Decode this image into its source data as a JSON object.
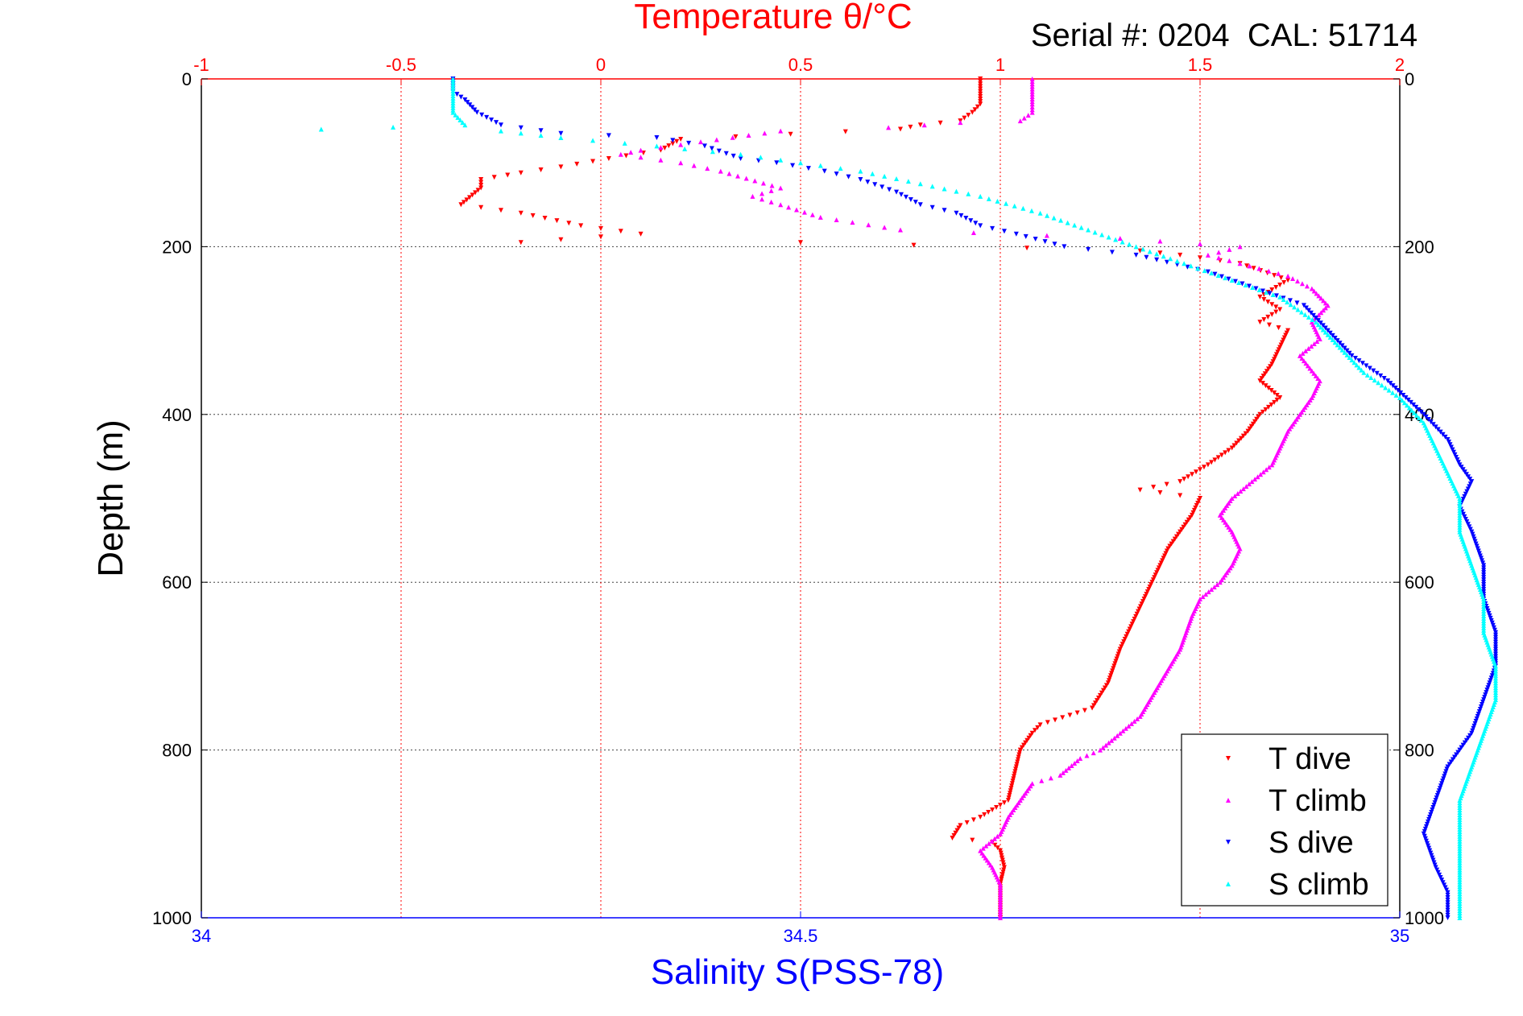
{
  "chart_data": {
    "type": "scatter",
    "title": "Temperature θ/°C",
    "subtitle": "Serial #: 0204  CAL: 51714",
    "ylabel": "Depth (m)",
    "xlabel": "Salinity S(PSS-78)",
    "x2label": "Temperature θ/°C",
    "ylim": [
      0,
      1000
    ],
    "y_reversed": true,
    "xlim_salinity": [
      34,
      35
    ],
    "xlim_temperature": [
      -1,
      2
    ],
    "y_ticks": [
      "0",
      "200",
      "400",
      "600",
      "800",
      "1000"
    ],
    "x_ticks_salinity": [
      "34",
      "34.5",
      "35"
    ],
    "x_ticks_temperature": [
      "-1",
      "-0.5",
      "0",
      "0.5",
      "1",
      "1.5",
      "2"
    ],
    "grid": true,
    "legend_position": "bottom-right",
    "colors": {
      "temperature_axis": "#ff0000",
      "salinity_axis": "#0000ff",
      "grid": "#555555"
    },
    "series": [
      {
        "name": "T dive",
        "axis": "temperature",
        "color": "#ff0000",
        "marker": "triangle-down",
        "points": [
          [
            0.95,
            0
          ],
          [
            0.95,
            15
          ],
          [
            0.95,
            30
          ],
          [
            0.93,
            40
          ],
          [
            0.9,
            50
          ],
          [
            0.8,
            55
          ],
          [
            0.75,
            60
          ],
          [
            0.2,
            72
          ],
          [
            0.15,
            85
          ],
          [
            0.02,
            95
          ],
          [
            -0.1,
            105
          ],
          [
            -0.2,
            112
          ],
          [
            -0.3,
            120
          ],
          [
            -0.3,
            130
          ],
          [
            -0.35,
            150
          ],
          [
            -0.2,
            160
          ],
          [
            -0.05,
            175
          ],
          [
            0.1,
            185
          ],
          [
            -0.2,
            195
          ],
          [
            0.5,
            195
          ],
          [
            1.35,
            205
          ],
          [
            1.45,
            210
          ],
          [
            1.6,
            220
          ],
          [
            1.72,
            240
          ],
          [
            1.65,
            260
          ],
          [
            1.7,
            275
          ],
          [
            1.65,
            290
          ],
          [
            1.72,
            300
          ],
          [
            1.7,
            320
          ],
          [
            1.68,
            340
          ],
          [
            1.65,
            360
          ],
          [
            1.7,
            380
          ],
          [
            1.65,
            400
          ],
          [
            1.62,
            420
          ],
          [
            1.58,
            440
          ],
          [
            1.52,
            460
          ],
          [
            1.45,
            480
          ],
          [
            1.35,
            490
          ],
          [
            1.5,
            500
          ],
          [
            1.48,
            520
          ],
          [
            1.45,
            540
          ],
          [
            1.42,
            560
          ],
          [
            1.4,
            580
          ],
          [
            1.38,
            600
          ],
          [
            1.36,
            620
          ],
          [
            1.33,
            650
          ],
          [
            1.3,
            680
          ],
          [
            1.27,
            720
          ],
          [
            1.23,
            750
          ],
          [
            1.1,
            770
          ],
          [
            1.08,
            780
          ],
          [
            1.05,
            800
          ],
          [
            1.04,
            820
          ],
          [
            1.03,
            840
          ],
          [
            1.02,
            860
          ],
          [
            0.95,
            880
          ],
          [
            0.9,
            890
          ],
          [
            0.88,
            905
          ],
          [
            0.98,
            910
          ],
          [
            1.0,
            920
          ],
          [
            1.01,
            940
          ],
          [
            1.0,
            960
          ],
          [
            1.0,
            980
          ],
          [
            1.0,
            1000
          ]
        ]
      },
      {
        "name": "T climb",
        "axis": "temperature",
        "color": "#ff00ff",
        "marker": "triangle-up",
        "points": [
          [
            1.08,
            0
          ],
          [
            1.08,
            15
          ],
          [
            1.08,
            30
          ],
          [
            1.08,
            40
          ],
          [
            1.05,
            50
          ],
          [
            0.9,
            52
          ],
          [
            0.72,
            58
          ],
          [
            0.45,
            62
          ],
          [
            0.25,
            75
          ],
          [
            0.1,
            85
          ],
          [
            0.05,
            90
          ],
          [
            0.2,
            100
          ],
          [
            0.3,
            110
          ],
          [
            0.45,
            130
          ],
          [
            0.38,
            140
          ],
          [
            0.45,
            150
          ],
          [
            0.55,
            165
          ],
          [
            0.75,
            180
          ],
          [
            1.3,
            190
          ],
          [
            1.6,
            200
          ],
          [
            1.52,
            210
          ],
          [
            1.6,
            220
          ],
          [
            1.72,
            235
          ],
          [
            1.78,
            250
          ],
          [
            1.82,
            270
          ],
          [
            1.78,
            290
          ],
          [
            1.8,
            310
          ],
          [
            1.75,
            330
          ],
          [
            1.8,
            360
          ],
          [
            1.78,
            380
          ],
          [
            1.75,
            400
          ],
          [
            1.72,
            420
          ],
          [
            1.7,
            440
          ],
          [
            1.68,
            460
          ],
          [
            1.63,
            480
          ],
          [
            1.58,
            500
          ],
          [
            1.55,
            520
          ],
          [
            1.58,
            540
          ],
          [
            1.6,
            560
          ],
          [
            1.58,
            580
          ],
          [
            1.55,
            600
          ],
          [
            1.5,
            620
          ],
          [
            1.48,
            640
          ],
          [
            1.45,
            680
          ],
          [
            1.4,
            720
          ],
          [
            1.35,
            760
          ],
          [
            1.3,
            780
          ],
          [
            1.25,
            800
          ],
          [
            1.2,
            810
          ],
          [
            1.15,
            830
          ],
          [
            1.08,
            840
          ],
          [
            1.05,
            860
          ],
          [
            1.02,
            880
          ],
          [
            1.0,
            900
          ],
          [
            0.95,
            920
          ],
          [
            0.98,
            940
          ],
          [
            1.0,
            960
          ],
          [
            1.0,
            1000
          ]
        ]
      },
      {
        "name": "S dive",
        "axis": "salinity",
        "color": "#0000ff",
        "marker": "triangle-down",
        "points": [
          [
            34.21,
            0
          ],
          [
            34.21,
            15
          ],
          [
            34.22,
            25
          ],
          [
            34.23,
            40
          ],
          [
            34.25,
            55
          ],
          [
            34.3,
            65
          ],
          [
            34.38,
            70
          ],
          [
            34.42,
            80
          ],
          [
            34.45,
            95
          ],
          [
            34.48,
            100
          ],
          [
            34.52,
            110
          ],
          [
            34.55,
            120
          ],
          [
            34.58,
            135
          ],
          [
            34.6,
            150
          ],
          [
            34.63,
            160
          ],
          [
            34.65,
            175
          ],
          [
            34.68,
            185
          ],
          [
            34.72,
            200
          ],
          [
            34.78,
            210
          ],
          [
            34.84,
            230
          ],
          [
            34.88,
            250
          ],
          [
            34.92,
            270
          ],
          [
            34.94,
            300
          ],
          [
            34.96,
            330
          ],
          [
            34.99,
            360
          ],
          [
            35.02,
            400
          ],
          [
            35.04,
            430
          ],
          [
            35.05,
            460
          ],
          [
            35.06,
            480
          ],
          [
            35.05,
            510
          ],
          [
            35.06,
            540
          ],
          [
            35.07,
            580
          ],
          [
            35.07,
            620
          ],
          [
            35.08,
            660
          ],
          [
            35.08,
            700
          ],
          [
            35.07,
            740
          ],
          [
            35.06,
            780
          ],
          [
            35.04,
            820
          ],
          [
            35.03,
            860
          ],
          [
            35.02,
            900
          ],
          [
            35.03,
            940
          ],
          [
            35.04,
            970
          ],
          [
            35.04,
            1000
          ]
        ]
      },
      {
        "name": "S climb",
        "axis": "salinity",
        "color": "#00ffff",
        "marker": "triangle-up",
        "points": [
          [
            34.21,
            0
          ],
          [
            34.21,
            20
          ],
          [
            34.21,
            40
          ],
          [
            34.22,
            55
          ],
          [
            34.1,
            60
          ],
          [
            34.25,
            62
          ],
          [
            34.3,
            70
          ],
          [
            34.38,
            80
          ],
          [
            34.45,
            90
          ],
          [
            34.5,
            100
          ],
          [
            34.55,
            110
          ],
          [
            34.6,
            125
          ],
          [
            34.65,
            140
          ],
          [
            34.7,
            160
          ],
          [
            34.74,
            180
          ],
          [
            34.78,
            200
          ],
          [
            34.82,
            220
          ],
          [
            34.86,
            240
          ],
          [
            34.9,
            260
          ],
          [
            34.93,
            290
          ],
          [
            34.95,
            320
          ],
          [
            34.97,
            350
          ],
          [
            35.0,
            380
          ],
          [
            35.02,
            410
          ],
          [
            35.03,
            440
          ],
          [
            35.04,
            470
          ],
          [
            35.05,
            500
          ],
          [
            35.05,
            540
          ],
          [
            35.06,
            580
          ],
          [
            35.07,
            620
          ],
          [
            35.07,
            660
          ],
          [
            35.08,
            700
          ],
          [
            35.08,
            740
          ],
          [
            35.07,
            780
          ],
          [
            35.06,
            820
          ],
          [
            35.05,
            860
          ],
          [
            35.05,
            900
          ],
          [
            35.05,
            940
          ],
          [
            35.05,
            980
          ],
          [
            35.05,
            1000
          ]
        ]
      }
    ]
  }
}
